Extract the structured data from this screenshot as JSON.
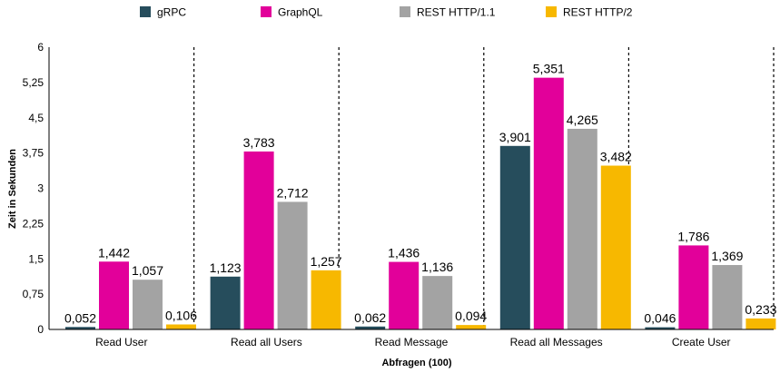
{
  "chart_data": {
    "type": "bar",
    "xlabel": "Abfragen (100)",
    "ylabel": "Zeit in Sekunden",
    "ylim": [
      0,
      6
    ],
    "yticks": [
      0,
      0.75,
      1.5,
      2.25,
      3,
      3.75,
      4.5,
      5.25,
      6
    ],
    "ytick_labels": [
      "0",
      "0,75",
      "1,5",
      "2,25",
      "3",
      "3,75",
      "4,5",
      "5,25",
      "6"
    ],
    "categories": [
      "Read User",
      "Read all Users",
      "Read Message",
      "Read all Messages",
      "Create User"
    ],
    "legend_position": "top",
    "category_separators": "dotted",
    "series": [
      {
        "name": "gRPC",
        "color": "#264d5c",
        "values": [
          0.052,
          1.123,
          0.062,
          3.901,
          0.046
        ],
        "labels": [
          "0,052",
          "1,123",
          "0,062",
          "3,901",
          "0,046"
        ]
      },
      {
        "name": "GraphQL",
        "color": "#e2009a",
        "values": [
          1.442,
          3.783,
          1.436,
          5.351,
          1.786
        ],
        "labels": [
          "1,442",
          "3,783",
          "1,436",
          "5,351",
          "1,786"
        ]
      },
      {
        "name": "REST HTTP/1.1",
        "color": "#a3a3a3",
        "values": [
          1.057,
          2.712,
          1.136,
          4.265,
          1.369
        ],
        "labels": [
          "1,057",
          "2,712",
          "1,136",
          "4,265",
          "1,369"
        ]
      },
      {
        "name": "REST HTTP/2",
        "color": "#f7b800",
        "values": [
          0.106,
          1.257,
          0.094,
          3.482,
          0.233
        ],
        "labels": [
          "0,106",
          "1,257",
          "0,094",
          "3,482",
          "0,233"
        ]
      }
    ]
  }
}
